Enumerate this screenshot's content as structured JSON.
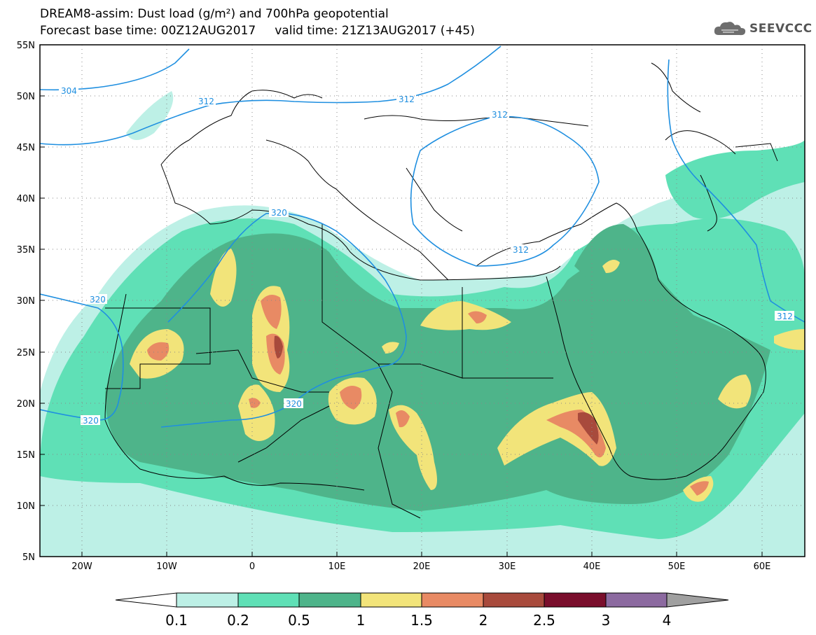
{
  "title": {
    "line1": "DREAM8-assim: Dust load (g/m²) and 700hPa geopotential",
    "line2": "Forecast base time: 00Z12AUG2017     valid time: 21Z13AUG2017 (+45)"
  },
  "logo": {
    "text": "SEEVCCC",
    "icon": "cloud-icon"
  },
  "map": {
    "lat_ticks": [
      "55N",
      "50N",
      "45N",
      "40N",
      "35N",
      "30N",
      "25N",
      "20N",
      "15N",
      "10N",
      "5N"
    ],
    "lon_ticks": [
      "20W",
      "10W",
      "0",
      "10E",
      "20E",
      "30E",
      "40E",
      "50E",
      "60E"
    ],
    "lat_range": [
      5,
      55
    ],
    "lon_range": [
      -25,
      65
    ],
    "contour_labels": [
      "304",
      "312",
      "312",
      "312",
      "312",
      "320",
      "320",
      "320",
      "320",
      "312"
    ]
  },
  "colorbar": {
    "labels": [
      "0.1",
      "0.2",
      "0.5",
      "1",
      "1.5",
      "2",
      "2.5",
      "3",
      "4"
    ],
    "colors": [
      "#ffffff",
      "#bdf0e6",
      "#5fe0b6",
      "#4eb48a",
      "#f2e47a",
      "#e88a64",
      "#a84a3c",
      "#7a0e2c",
      "#8c6aa0",
      "#a0a0a0"
    ]
  }
}
